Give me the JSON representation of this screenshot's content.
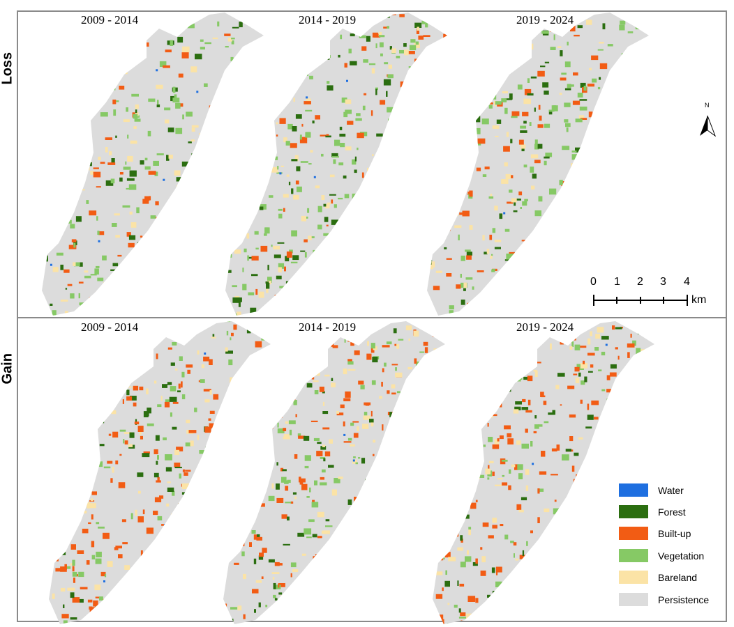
{
  "rows": [
    {
      "label": "Loss",
      "periods": [
        "2009 - 2014",
        "2014 - 2019",
        "2019 - 2024"
      ]
    },
    {
      "label": "Gain",
      "periods": [
        "2009 - 2014",
        "2014 - 2019",
        "2019 - 2024"
      ]
    }
  ],
  "north_arrow": {
    "letter": "N"
  },
  "scale_bar": {
    "ticks": [
      "0",
      "1",
      "2",
      "3",
      "4"
    ],
    "unit": "km"
  },
  "legend": [
    {
      "label": "Water",
      "color": "#1e6fe0"
    },
    {
      "label": "Forest",
      "color": "#2b6e10"
    },
    {
      "label": "Built-up",
      "color": "#f25c14"
    },
    {
      "label": "Vegetation",
      "color": "#86c965"
    },
    {
      "label": "Bareland",
      "color": "#fbe3a6"
    },
    {
      "label": "Persistence",
      "color": "#dcdcdc"
    }
  ],
  "map_style": {
    "persistence": "#dcdcdc",
    "loss_mix": [
      "#86c965",
      "#86c965",
      "#fbe3a6",
      "#2b6e10",
      "#f25c14"
    ],
    "gain_mix": [
      "#f25c14",
      "#f25c14",
      "#2b6e10",
      "#86c965",
      "#fbe3a6"
    ]
  }
}
